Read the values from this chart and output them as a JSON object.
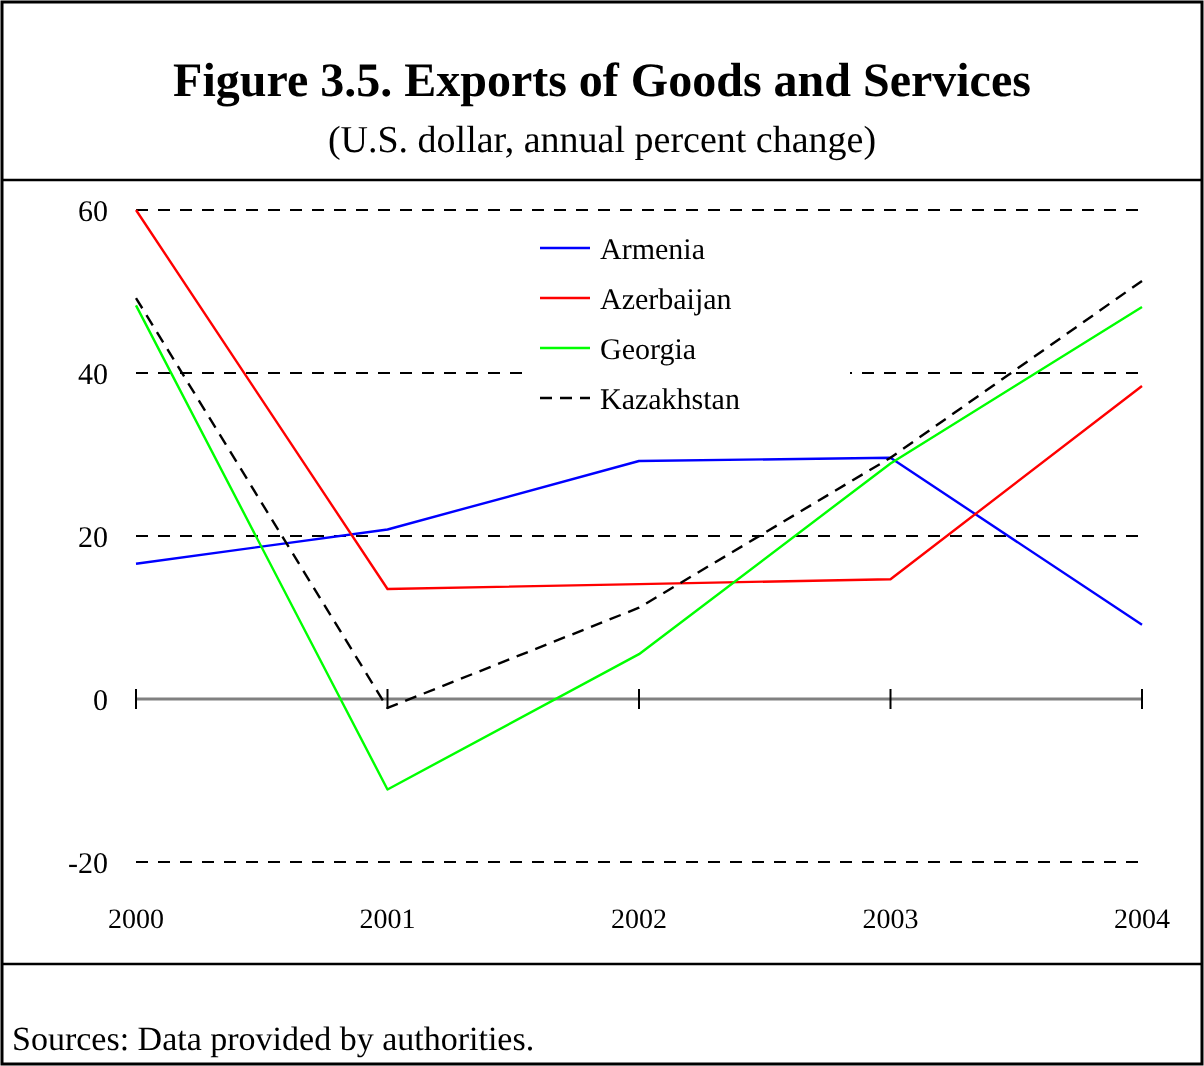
{
  "chart_data": {
    "type": "line",
    "title": "Figure 3.5.  Exports of Goods and Services",
    "subtitle": "(U.S. dollar, annual percent change)",
    "categories": [
      "2000",
      "2001",
      "2002",
      "2003",
      "2004"
    ],
    "series": [
      {
        "name": "Armenia",
        "color": "#0000ff",
        "values": [
          16.6,
          20.8,
          29.2,
          29.6,
          9.1
        ]
      },
      {
        "name": "Azerbaijan",
        "color": "#ff0000",
        "values": [
          60,
          13.5,
          14.1,
          14.7,
          38.4
        ]
      },
      {
        "name": "Georgia",
        "color": "#00ff00",
        "values": [
          48.3,
          -11.1,
          5.5,
          28.9,
          48.1
        ]
      },
      {
        "name": "Kazakhstan",
        "color": "#000000",
        "values": [
          49.2,
          -1.1,
          11.2,
          29.6,
          51.3
        ],
        "line_style": "dashed"
      }
    ],
    "ylim": [
      -20,
      60
    ],
    "yticks": [
      -20,
      0,
      20,
      40,
      60
    ],
    "grid": "y",
    "legend": "top",
    "annotations": [
      "Sources: Data provided by authorities."
    ]
  }
}
